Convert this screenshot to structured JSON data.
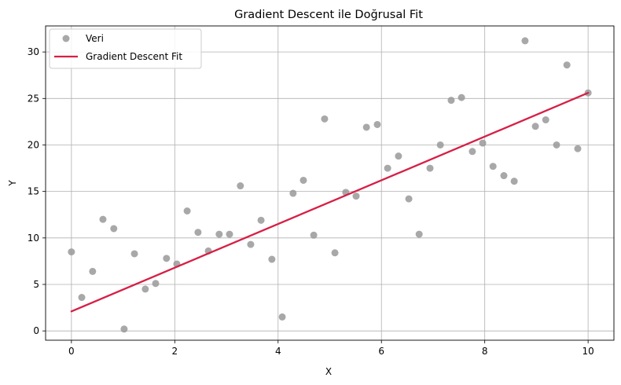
{
  "chart_data": {
    "type": "scatter",
    "title": "Gradient Descent ile Doğrusal Fit",
    "xlabel": "X",
    "ylabel": "Y",
    "xlim": [
      -0.5,
      10.5
    ],
    "ylim": [
      -1.0,
      32.8
    ],
    "xticks": [
      0,
      2,
      4,
      6,
      8,
      10
    ],
    "yticks": [
      0,
      5,
      10,
      15,
      20,
      25,
      30
    ],
    "grid": true,
    "legend_position": "top-left",
    "series": [
      {
        "name": "Veri",
        "kind": "scatter",
        "color": "#999999",
        "x": [
          0.0,
          0.2,
          0.41,
          0.61,
          0.82,
          1.02,
          1.22,
          1.43,
          1.63,
          1.84,
          2.04,
          2.24,
          2.45,
          2.65,
          2.86,
          3.06,
          3.27,
          3.47,
          3.67,
          3.88,
          4.08,
          4.29,
          4.49,
          4.69,
          4.9,
          5.1,
          5.31,
          5.51,
          5.71,
          5.92,
          6.12,
          6.33,
          6.53,
          6.73,
          6.94,
          7.14,
          7.35,
          7.55,
          7.76,
          7.96,
          8.16,
          8.37,
          8.57,
          8.78,
          8.98,
          9.18,
          9.39,
          9.59,
          9.8,
          10.0
        ],
        "y": [
          8.5,
          3.6,
          6.4,
          12.0,
          11.0,
          0.2,
          8.3,
          4.5,
          5.1,
          7.8,
          7.2,
          12.9,
          10.6,
          8.6,
          10.4,
          10.4,
          15.6,
          9.3,
          11.9,
          7.7,
          1.5,
          14.8,
          16.2,
          10.3,
          22.8,
          8.4,
          14.9,
          14.5,
          21.9,
          22.2,
          17.5,
          18.8,
          14.2,
          10.4,
          17.5,
          20.0,
          24.8,
          25.1,
          19.3,
          20.2,
          17.7,
          16.7,
          16.1,
          31.2,
          22.0,
          22.7,
          20.0,
          28.6,
          19.6,
          25.6
        ]
      },
      {
        "name": "Gradient Descent Fit",
        "kind": "line",
        "color": "#d61f45",
        "x": [
          0,
          10
        ],
        "y": [
          2.1,
          25.6
        ]
      }
    ]
  }
}
